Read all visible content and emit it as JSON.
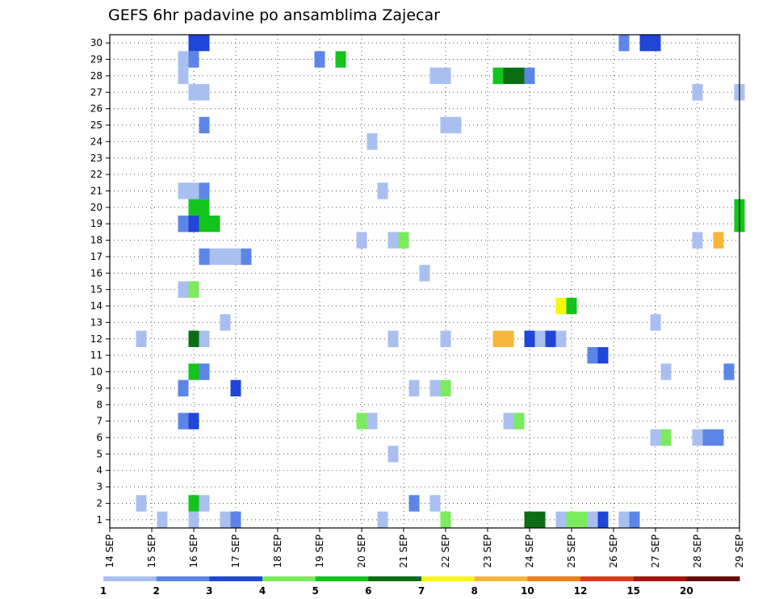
{
  "chart_data": {
    "type": "heatmap",
    "title": "GEFS 6hr padavine po ansamblima Zajecar",
    "xlabel": "",
    "ylabel": "",
    "x_ticks": [
      "14 SEP",
      "15 SEP",
      "16 SEP",
      "17 SEP",
      "18 SEP",
      "19 SEP",
      "20 SEP",
      "21 SEP",
      "22 SEP",
      "23 SEP",
      "24 SEP",
      "25 SEP",
      "26 SEP",
      "27 SEP",
      "28 SEP",
      "29 SEP"
    ],
    "y_ticks": [
      "1",
      "2",
      "3",
      "4",
      "5",
      "6",
      "7",
      "8",
      "9",
      "10",
      "11",
      "12",
      "13",
      "14",
      "15",
      "16",
      "17",
      "18",
      "19",
      "20",
      "21",
      "22",
      "23",
      "24",
      "25",
      "26",
      "27",
      "28",
      "29",
      "30"
    ],
    "xlim": [
      0,
      60
    ],
    "ylim": [
      0.5,
      30.5
    ],
    "x_step_unit": "6hr steps from 14 SEP 00Z",
    "grid": true,
    "colorbar": {
      "position": "bottom",
      "ticks": [
        "1",
        "2",
        "3",
        "4",
        "5",
        "6",
        "7",
        "8",
        "10",
        "12",
        "15",
        "20"
      ],
      "bins": [
        {
          "from": 1,
          "to": 2,
          "color": "#a9bff0"
        },
        {
          "from": 2,
          "to": 3,
          "color": "#5b86e8"
        },
        {
          "from": 3,
          "to": 4,
          "color": "#1f45d9"
        },
        {
          "from": 4,
          "to": 5,
          "color": "#7beb5d"
        },
        {
          "from": 5,
          "to": 6,
          "color": "#13c41c"
        },
        {
          "from": 6,
          "to": 7,
          "color": "#0b6e14"
        },
        {
          "from": 7,
          "to": 8,
          "color": "#f8f80a"
        },
        {
          "from": 8,
          "to": 10,
          "color": "#f8b638"
        },
        {
          "from": 10,
          "to": 12,
          "color": "#f07e18"
        },
        {
          "from": 12,
          "to": 15,
          "color": "#e3381d"
        },
        {
          "from": 15,
          "to": 20,
          "color": "#a8120f"
        },
        {
          "from": 20,
          "to": 30,
          "color": "#6a0e0e"
        }
      ]
    },
    "cells": [
      {
        "x": 8,
        "y": 30,
        "c": 2
      },
      {
        "x": 9,
        "y": 30,
        "c": 2
      },
      {
        "x": 49,
        "y": 30,
        "c": 1
      },
      {
        "x": 51,
        "y": 30,
        "c": 2
      },
      {
        "x": 52,
        "y": 30,
        "c": 2
      },
      {
        "x": 7,
        "y": 29,
        "c": 0
      },
      {
        "x": 8,
        "y": 29,
        "c": 1
      },
      {
        "x": 20,
        "y": 29,
        "c": 1
      },
      {
        "x": 22,
        "y": 29,
        "c": 4
      },
      {
        "x": 7,
        "y": 28,
        "c": 0
      },
      {
        "x": 31,
        "y": 28,
        "c": 0
      },
      {
        "x": 32,
        "y": 28,
        "c": 0
      },
      {
        "x": 37,
        "y": 28,
        "c": 4
      },
      {
        "x": 38,
        "y": 28,
        "c": 5
      },
      {
        "x": 39,
        "y": 28,
        "c": 5
      },
      {
        "x": 40,
        "y": 28,
        "c": 1
      },
      {
        "x": 8,
        "y": 27,
        "c": 0
      },
      {
        "x": 9,
        "y": 27,
        "c": 0
      },
      {
        "x": 56,
        "y": 27,
        "c": 0
      },
      {
        "x": 60,
        "y": 27,
        "c": 0
      },
      {
        "x": 9,
        "y": 25,
        "c": 1
      },
      {
        "x": 32,
        "y": 25,
        "c": 0
      },
      {
        "x": 33,
        "y": 25,
        "c": 0
      },
      {
        "x": 25,
        "y": 24,
        "c": 0
      },
      {
        "x": 7,
        "y": 21,
        "c": 0
      },
      {
        "x": 8,
        "y": 21,
        "c": 0
      },
      {
        "x": 9,
        "y": 21,
        "c": 1
      },
      {
        "x": 26,
        "y": 21,
        "c": 0
      },
      {
        "x": 8,
        "y": 20,
        "c": 4
      },
      {
        "x": 9,
        "y": 20,
        "c": 4
      },
      {
        "x": 60,
        "y": 20,
        "c": 4
      },
      {
        "x": 7,
        "y": 19,
        "c": 1
      },
      {
        "x": 8,
        "y": 19,
        "c": 2
      },
      {
        "x": 9,
        "y": 19,
        "c": 4
      },
      {
        "x": 10,
        "y": 19,
        "c": 4
      },
      {
        "x": 60,
        "y": 19,
        "c": 4
      },
      {
        "x": 24,
        "y": 18,
        "c": 0
      },
      {
        "x": 27,
        "y": 18,
        "c": 0
      },
      {
        "x": 28,
        "y": 18,
        "c": 3
      },
      {
        "x": 56,
        "y": 18,
        "c": 0
      },
      {
        "x": 58,
        "y": 18,
        "c": 7
      },
      {
        "x": 9,
        "y": 17,
        "c": 1
      },
      {
        "x": 10,
        "y": 17,
        "c": 0
      },
      {
        "x": 11,
        "y": 17,
        "c": 0
      },
      {
        "x": 12,
        "y": 17,
        "c": 0
      },
      {
        "x": 13,
        "y": 17,
        "c": 1
      },
      {
        "x": 30,
        "y": 16,
        "c": 0
      },
      {
        "x": 7,
        "y": 15,
        "c": 0
      },
      {
        "x": 8,
        "y": 15,
        "c": 3
      },
      {
        "x": 43,
        "y": 14,
        "c": 6
      },
      {
        "x": 44,
        "y": 14,
        "c": 4
      },
      {
        "x": 11,
        "y": 13,
        "c": 0
      },
      {
        "x": 52,
        "y": 13,
        "c": 0
      },
      {
        "x": 3,
        "y": 12,
        "c": 0
      },
      {
        "x": 8,
        "y": 12,
        "c": 5
      },
      {
        "x": 9,
        "y": 12,
        "c": 0
      },
      {
        "x": 27,
        "y": 12,
        "c": 0
      },
      {
        "x": 32,
        "y": 12,
        "c": 0
      },
      {
        "x": 37,
        "y": 12,
        "c": 7
      },
      {
        "x": 38,
        "y": 12,
        "c": 7
      },
      {
        "x": 40,
        "y": 12,
        "c": 2
      },
      {
        "x": 41,
        "y": 12,
        "c": 0
      },
      {
        "x": 42,
        "y": 12,
        "c": 2
      },
      {
        "x": 43,
        "y": 12,
        "c": 0
      },
      {
        "x": 46,
        "y": 11,
        "c": 1
      },
      {
        "x": 47,
        "y": 11,
        "c": 2
      },
      {
        "x": 8,
        "y": 10,
        "c": 4
      },
      {
        "x": 9,
        "y": 10,
        "c": 1
      },
      {
        "x": 53,
        "y": 10,
        "c": 0
      },
      {
        "x": 59,
        "y": 10,
        "c": 1
      },
      {
        "x": 7,
        "y": 9,
        "c": 1
      },
      {
        "x": 12,
        "y": 9,
        "c": 2
      },
      {
        "x": 29,
        "y": 9,
        "c": 0
      },
      {
        "x": 31,
        "y": 9,
        "c": 0
      },
      {
        "x": 32,
        "y": 9,
        "c": 3
      },
      {
        "x": 7,
        "y": 7,
        "c": 1
      },
      {
        "x": 8,
        "y": 7,
        "c": 2
      },
      {
        "x": 24,
        "y": 7,
        "c": 3
      },
      {
        "x": 25,
        "y": 7,
        "c": 0
      },
      {
        "x": 38,
        "y": 7,
        "c": 0
      },
      {
        "x": 39,
        "y": 7,
        "c": 3
      },
      {
        "x": 52,
        "y": 6,
        "c": 0
      },
      {
        "x": 53,
        "y": 6,
        "c": 3
      },
      {
        "x": 56,
        "y": 6,
        "c": 0
      },
      {
        "x": 57,
        "y": 6,
        "c": 1
      },
      {
        "x": 58,
        "y": 6,
        "c": 1
      },
      {
        "x": 27,
        "y": 5,
        "c": 0
      },
      {
        "x": 3,
        "y": 2,
        "c": 0
      },
      {
        "x": 8,
        "y": 2,
        "c": 4
      },
      {
        "x": 9,
        "y": 2,
        "c": 0
      },
      {
        "x": 29,
        "y": 2,
        "c": 1
      },
      {
        "x": 31,
        "y": 2,
        "c": 0
      },
      {
        "x": 5,
        "y": 1,
        "c": 0
      },
      {
        "x": 8,
        "y": 1,
        "c": 0
      },
      {
        "x": 11,
        "y": 1,
        "c": 0
      },
      {
        "x": 12,
        "y": 1,
        "c": 1
      },
      {
        "x": 26,
        "y": 1,
        "c": 0
      },
      {
        "x": 32,
        "y": 1,
        "c": 3
      },
      {
        "x": 40,
        "y": 1,
        "c": 5
      },
      {
        "x": 41,
        "y": 1,
        "c": 5
      },
      {
        "x": 43,
        "y": 1,
        "c": 0
      },
      {
        "x": 44,
        "y": 1,
        "c": 3
      },
      {
        "x": 45,
        "y": 1,
        "c": 3
      },
      {
        "x": 46,
        "y": 1,
        "c": 0
      },
      {
        "x": 47,
        "y": 1,
        "c": 2
      },
      {
        "x": 49,
        "y": 1,
        "c": 0
      },
      {
        "x": 50,
        "y": 1,
        "c": 1
      }
    ]
  }
}
